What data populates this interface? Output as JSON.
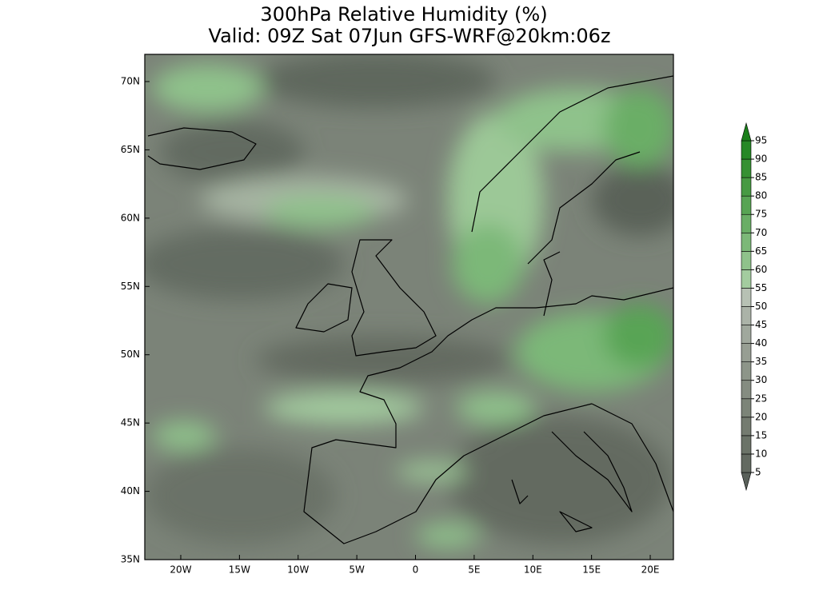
{
  "title": "300hPa Relative Humidity (%)",
  "subtitle": "Valid: 09Z Sat 07Jun GFS-WRF@20km:06z",
  "map": {
    "lat_labels": [
      "70N",
      "65N",
      "60N",
      "55N",
      "50N",
      "45N",
      "40N",
      "35N"
    ],
    "lon_labels": [
      "20W",
      "15W",
      "10W",
      "5W",
      "0",
      "5E",
      "10E",
      "15E",
      "20E"
    ]
  },
  "colorbar": {
    "levels": [
      5,
      10,
      15,
      20,
      25,
      30,
      35,
      40,
      45,
      50,
      55,
      60,
      65,
      70,
      75,
      80,
      85,
      90,
      95
    ],
    "colors": [
      "#59605a",
      "#636a61",
      "#6b7368",
      "#747b70",
      "#7c8478",
      "#858c81",
      "#8d9589",
      "#979e93",
      "#a0a89d",
      "#abb3a8",
      "#b7c1b4",
      "#a3cc9f",
      "#8fc28b",
      "#7cb878",
      "#6aae66",
      "#58a454",
      "#479a43",
      "#369133",
      "#268826",
      "#1a7f1a"
    ]
  }
}
